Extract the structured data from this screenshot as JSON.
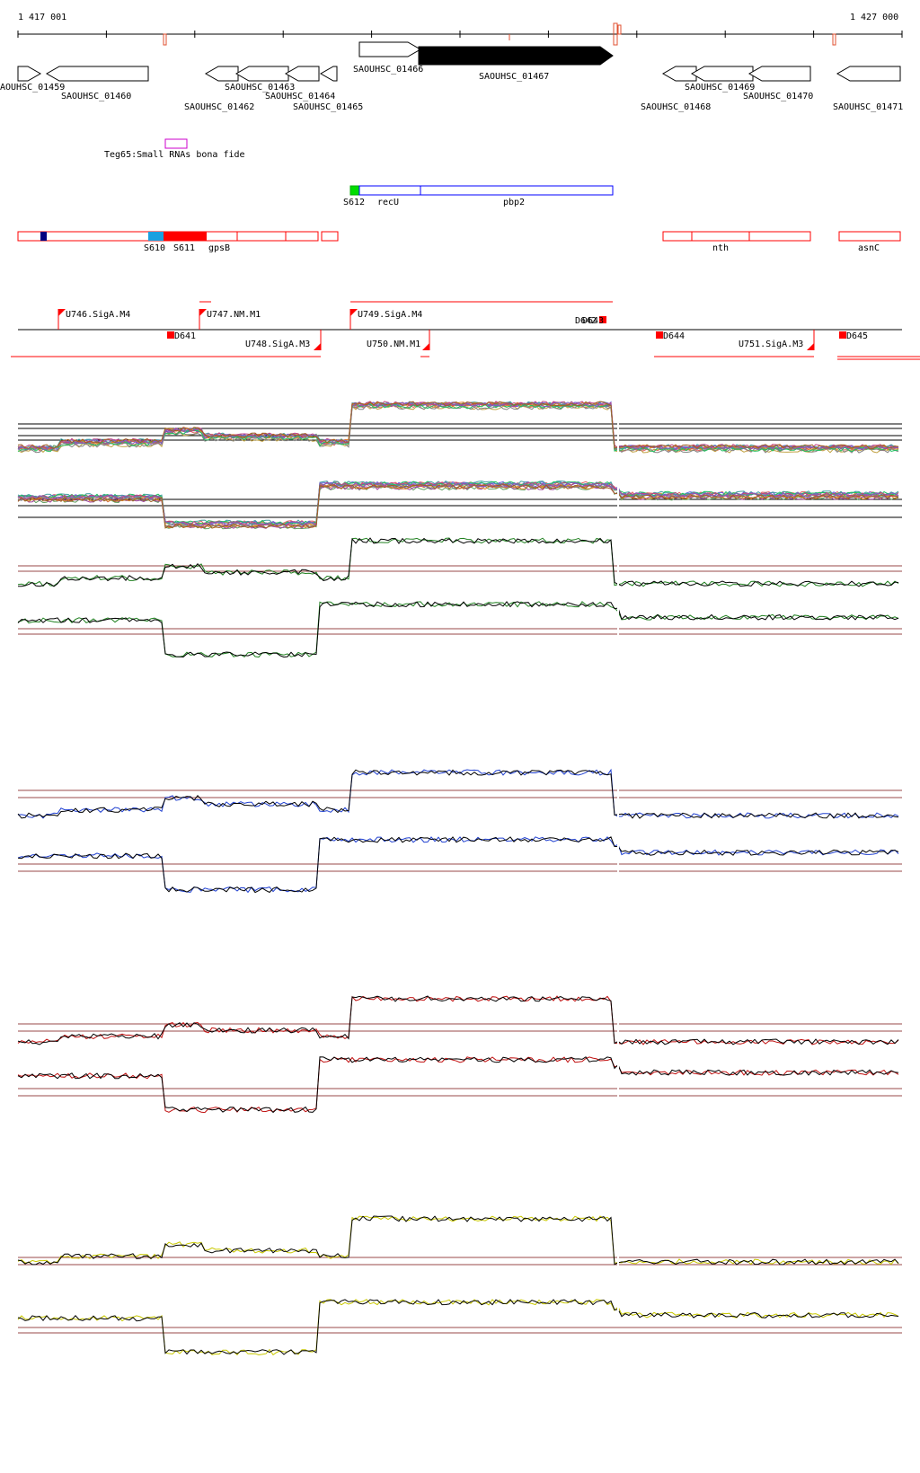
{
  "coords": {
    "start": "1 417 001",
    "end": "1 427 000"
  },
  "genes": [
    {
      "id": "SAOUHSC_01459",
      "label": "AOUHSC_01459"
    },
    {
      "id": "SAOUHSC_01460",
      "label": "SAOUHSC_01460"
    },
    {
      "id": "SAOUHSC_01462",
      "label": "SAOUHSC_01462"
    },
    {
      "id": "SAOUHSC_01463",
      "label": "SAOUHSC_01463"
    },
    {
      "id": "SAOUHSC_01464",
      "label": "SAOUHSC_01464"
    },
    {
      "id": "SAOUHSC_01465",
      "label": "SAOUHSC_01465"
    },
    {
      "id": "SAOUHSC_01466",
      "label": "SAOUHSC_01466"
    },
    {
      "id": "SAOUHSC_01467",
      "label": "SAOUHSC_01467"
    },
    {
      "id": "SAOUHSC_01468",
      "label": "SAOUHSC_01468"
    },
    {
      "id": "SAOUHSC_01469",
      "label": "SAOUHSC_01469"
    },
    {
      "id": "SAOUHSC_01470",
      "label": "SAOUHSC_01470"
    },
    {
      "id": "SAOUHSC_01471",
      "label": "SAOUHSC_01471"
    }
  ],
  "srna": {
    "label": "Teg65:Small RNAs bona fide"
  },
  "operon_upper": [
    {
      "label": "S612",
      "color": "#00dd00"
    },
    {
      "label": "recU",
      "color": "#0000ff"
    },
    {
      "label": "pbp2",
      "color": "#0000ff"
    }
  ],
  "operon_lower": [
    {
      "label": "S610",
      "color": "#1aa0e0"
    },
    {
      "label": "S611",
      "color": "#ff0000"
    },
    {
      "label": "gpsB",
      "color": "#ff0000"
    },
    {
      "label": "nth",
      "color": "#ff0000"
    },
    {
      "label": "asnC",
      "color": "#ff0000"
    }
  ],
  "promoters": [
    {
      "label": "U746.SigA.M4"
    },
    {
      "label": "U747.NM.M1"
    },
    {
      "label": "U748.SigA.M3"
    },
    {
      "label": "U749.SigA.M4"
    },
    {
      "label": "U750.NM.M1"
    },
    {
      "label": "U751.SigA.M3"
    }
  ],
  "terminators": [
    {
      "label": "D641"
    },
    {
      "label": "D642"
    },
    {
      "label": "D643"
    },
    {
      "label": "D644"
    },
    {
      "label": "D645"
    }
  ],
  "colors": {
    "axis": "#000000",
    "gene_fill": "#ffffff",
    "gene_highlight": "#000000",
    "srna": "#cc00cc",
    "operon_red": "#ff0000",
    "operon_blue": "#0000ff",
    "track_green": "#208020",
    "track_blue": "#2040d0",
    "track_red": "#c01010",
    "track_yellow": "#c8c800",
    "threshold": "#9a4a4a"
  }
}
